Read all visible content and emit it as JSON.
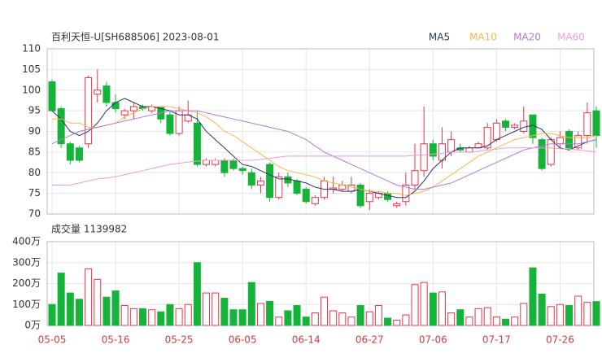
{
  "chart_data": [
    {
      "type": "candlestick",
      "title": "百利天恒-U[SH688506] 2023-08-01",
      "categories": [
        "05-05",
        null,
        null,
        null,
        null,
        null,
        null,
        "05-16",
        null,
        null,
        null,
        null,
        null,
        null,
        "05-25",
        null,
        null,
        null,
        null,
        null,
        null,
        "06-05",
        null,
        null,
        null,
        null,
        null,
        null,
        "06-14",
        null,
        null,
        null,
        null,
        null,
        null,
        "06-27",
        null,
        null,
        null,
        null,
        null,
        null,
        "07-06",
        null,
        null,
        null,
        null,
        null,
        null,
        "07-17",
        null,
        null,
        null,
        null,
        null,
        null,
        "07-26",
        null,
        null,
        null,
        null
      ],
      "open": [
        102,
        95.5,
        87,
        86,
        87,
        99,
        101,
        97,
        94,
        95,
        96,
        95,
        96,
        94,
        89.5,
        92.5,
        92,
        82,
        82,
        83,
        83,
        81,
        80,
        77,
        82,
        74,
        79,
        78,
        76,
        72.5,
        74,
        76,
        76,
        75.5,
        77,
        73,
        74,
        75,
        72,
        73,
        77,
        80.5,
        87,
        83,
        85,
        86,
        85,
        86,
        86,
        88,
        92.5,
        91,
        90,
        94,
        88,
        82,
        87,
        90,
        86,
        89,
        95
      ],
      "high": [
        102.5,
        96,
        87.5,
        86.5,
        103.5,
        105,
        102,
        99,
        95.5,
        97,
        96.5,
        96.5,
        96,
        95,
        96,
        97.5,
        95,
        83.5,
        83.5,
        83.5,
        83.5,
        81.5,
        81,
        79,
        82.5,
        80,
        80,
        78.5,
        76.5,
        74.5,
        79,
        79,
        78,
        79,
        77.5,
        76,
        75.5,
        75.5,
        73,
        80,
        87,
        96,
        88,
        91,
        90,
        87,
        86.5,
        87.5,
        92,
        93,
        93,
        92,
        96,
        94,
        88.5,
        88.5,
        90,
        90.5,
        90,
        97,
        96
      ],
      "low": [
        95,
        86,
        82,
        82.5,
        86,
        97,
        96,
        94.5,
        93,
        93,
        95,
        94.5,
        92,
        89,
        89,
        92,
        81.5,
        81.5,
        81.5,
        79,
        80.5,
        79.5,
        76,
        75,
        73,
        73.5,
        76.5,
        74.5,
        72.5,
        72,
        73.5,
        75,
        75.5,
        75,
        71.5,
        71,
        73.5,
        73,
        71.5,
        72,
        76,
        79,
        83,
        81,
        84,
        85,
        85,
        86,
        85.5,
        87.5,
        90,
        90.5,
        89.5,
        87,
        80.5,
        81.5,
        86,
        85.5,
        85.5,
        87,
        86
      ],
      "close": [
        95,
        87,
        83,
        83,
        103,
        100,
        97,
        95.5,
        95,
        96,
        95.5,
        96,
        93,
        89.5,
        95,
        94,
        82,
        83,
        83,
        80,
        81,
        80.5,
        77,
        78,
        74,
        79,
        77.5,
        75,
        73,
        74,
        78,
        76.3,
        77,
        77,
        72,
        75,
        75,
        73.5,
        72.5,
        77,
        80.5,
        87,
        84,
        87,
        88,
        85.5,
        86,
        87,
        91,
        92,
        91,
        91.5,
        92.5,
        88.5,
        81,
        88,
        88.5,
        86,
        89,
        94.5,
        89
      ],
      "up_color": "#e8364a",
      "down_color": "#16b33a",
      "series": [
        {
          "name": "MA5",
          "color": "#2b3468",
          "values": [
            95,
            93,
            90,
            89,
            90,
            92,
            95,
            97,
            98,
            97,
            96,
            96,
            95.5,
            95,
            94,
            94,
            93,
            90,
            88,
            86,
            84,
            82,
            81.5,
            80.5,
            79.5,
            78.5,
            78.5,
            78,
            77.5,
            76.5,
            76,
            76,
            75.5,
            75.5,
            76,
            75.5,
            75,
            74.5,
            74,
            74,
            75.5,
            78,
            81,
            83,
            85,
            86,
            86,
            86,
            86.5,
            88,
            89,
            90,
            91,
            91.5,
            90.5,
            88,
            86,
            85.5,
            86.5,
            87.5,
            88
          ]
        },
        {
          "name": "MA10",
          "color": "#f4b84a",
          "values": [
            93,
            93,
            92,
            92,
            91,
            91,
            91.5,
            92,
            93.5,
            94.5,
            95.5,
            96,
            96,
            96,
            95.5,
            95,
            94.5,
            93.5,
            92,
            90,
            89,
            87.5,
            86,
            84.5,
            83,
            81.5,
            80.5,
            80,
            79.5,
            79,
            78,
            77.5,
            77,
            76.5,
            76,
            75.5,
            75.5,
            75,
            75,
            74.5,
            75,
            75.5,
            76.5,
            78,
            79.5,
            81,
            82.5,
            84,
            85,
            86,
            87,
            88,
            88.5,
            89,
            89.5,
            89.5,
            89,
            88.5,
            88.5,
            88.5,
            89
          ]
        },
        {
          "name": "MA20",
          "color": "#b677d6",
          "values": [
            87,
            88,
            89,
            90,
            90.5,
            91,
            91.5,
            92,
            92.5,
            93,
            93.5,
            94,
            94.5,
            95,
            95,
            95,
            95,
            94.5,
            94,
            93.5,
            93,
            92.5,
            92,
            91.5,
            91,
            90.5,
            90,
            89,
            88,
            86.5,
            85,
            84,
            83,
            82,
            81,
            80,
            79,
            78,
            77,
            76.5,
            76,
            76,
            76.5,
            77,
            77.5,
            78.5,
            79.5,
            80.5,
            81.5,
            82.5,
            83.5,
            84.5,
            85.5,
            86,
            86.5,
            87,
            87,
            87,
            87,
            87.5,
            88
          ]
        },
        {
          "name": "MA60",
          "color": "#f29bd2",
          "values": [
            77,
            77,
            77,
            77.5,
            78,
            78.5,
            78.7,
            79,
            79.5,
            80,
            80.5,
            81,
            81.5,
            82,
            82.3,
            82.6,
            82.8,
            83,
            83,
            83,
            83,
            83,
            83,
            83.2,
            83.5,
            83.8,
            84,
            84,
            84,
            84,
            84,
            84,
            84,
            84,
            84,
            84,
            84,
            84,
            84,
            84,
            84.2,
            84.3,
            84.5,
            84.7,
            85,
            85,
            85,
            85.2,
            85.5,
            85.7,
            86,
            86,
            86,
            86,
            86,
            86,
            85.8,
            85.7,
            85.5,
            85.3,
            85
          ]
        }
      ],
      "ylim": [
        70,
        110
      ],
      "yticks": [
        70,
        75,
        80,
        85,
        90,
        95,
        100,
        105,
        110
      ],
      "grid": true
    },
    {
      "type": "volume",
      "title": "成交量 1139982",
      "values": [
        100,
        250,
        155,
        125,
        270,
        220,
        135,
        165,
        95,
        80,
        80,
        75,
        65,
        100,
        80,
        100,
        300,
        155,
        155,
        130,
        75,
        75,
        205,
        105,
        115,
        40,
        70,
        95,
        40,
        60,
        135,
        70,
        60,
        40,
        95,
        65,
        95,
        35,
        25,
        50,
        195,
        205,
        155,
        160,
        60,
        75,
        40,
        80,
        85,
        40,
        30,
        40,
        105,
        275,
        150,
        90,
        100,
        95,
        140,
        110,
        113.9982
      ],
      "ylim": [
        0,
        400
      ],
      "yticks": [
        {
          "value": 0,
          "label": "0万"
        },
        {
          "value": 100,
          "label": "100万"
        },
        {
          "value": 200,
          "label": "200万"
        },
        {
          "value": 300,
          "label": "300万"
        },
        {
          "value": 400,
          "label": "400万"
        }
      ],
      "grid": true
    }
  ]
}
